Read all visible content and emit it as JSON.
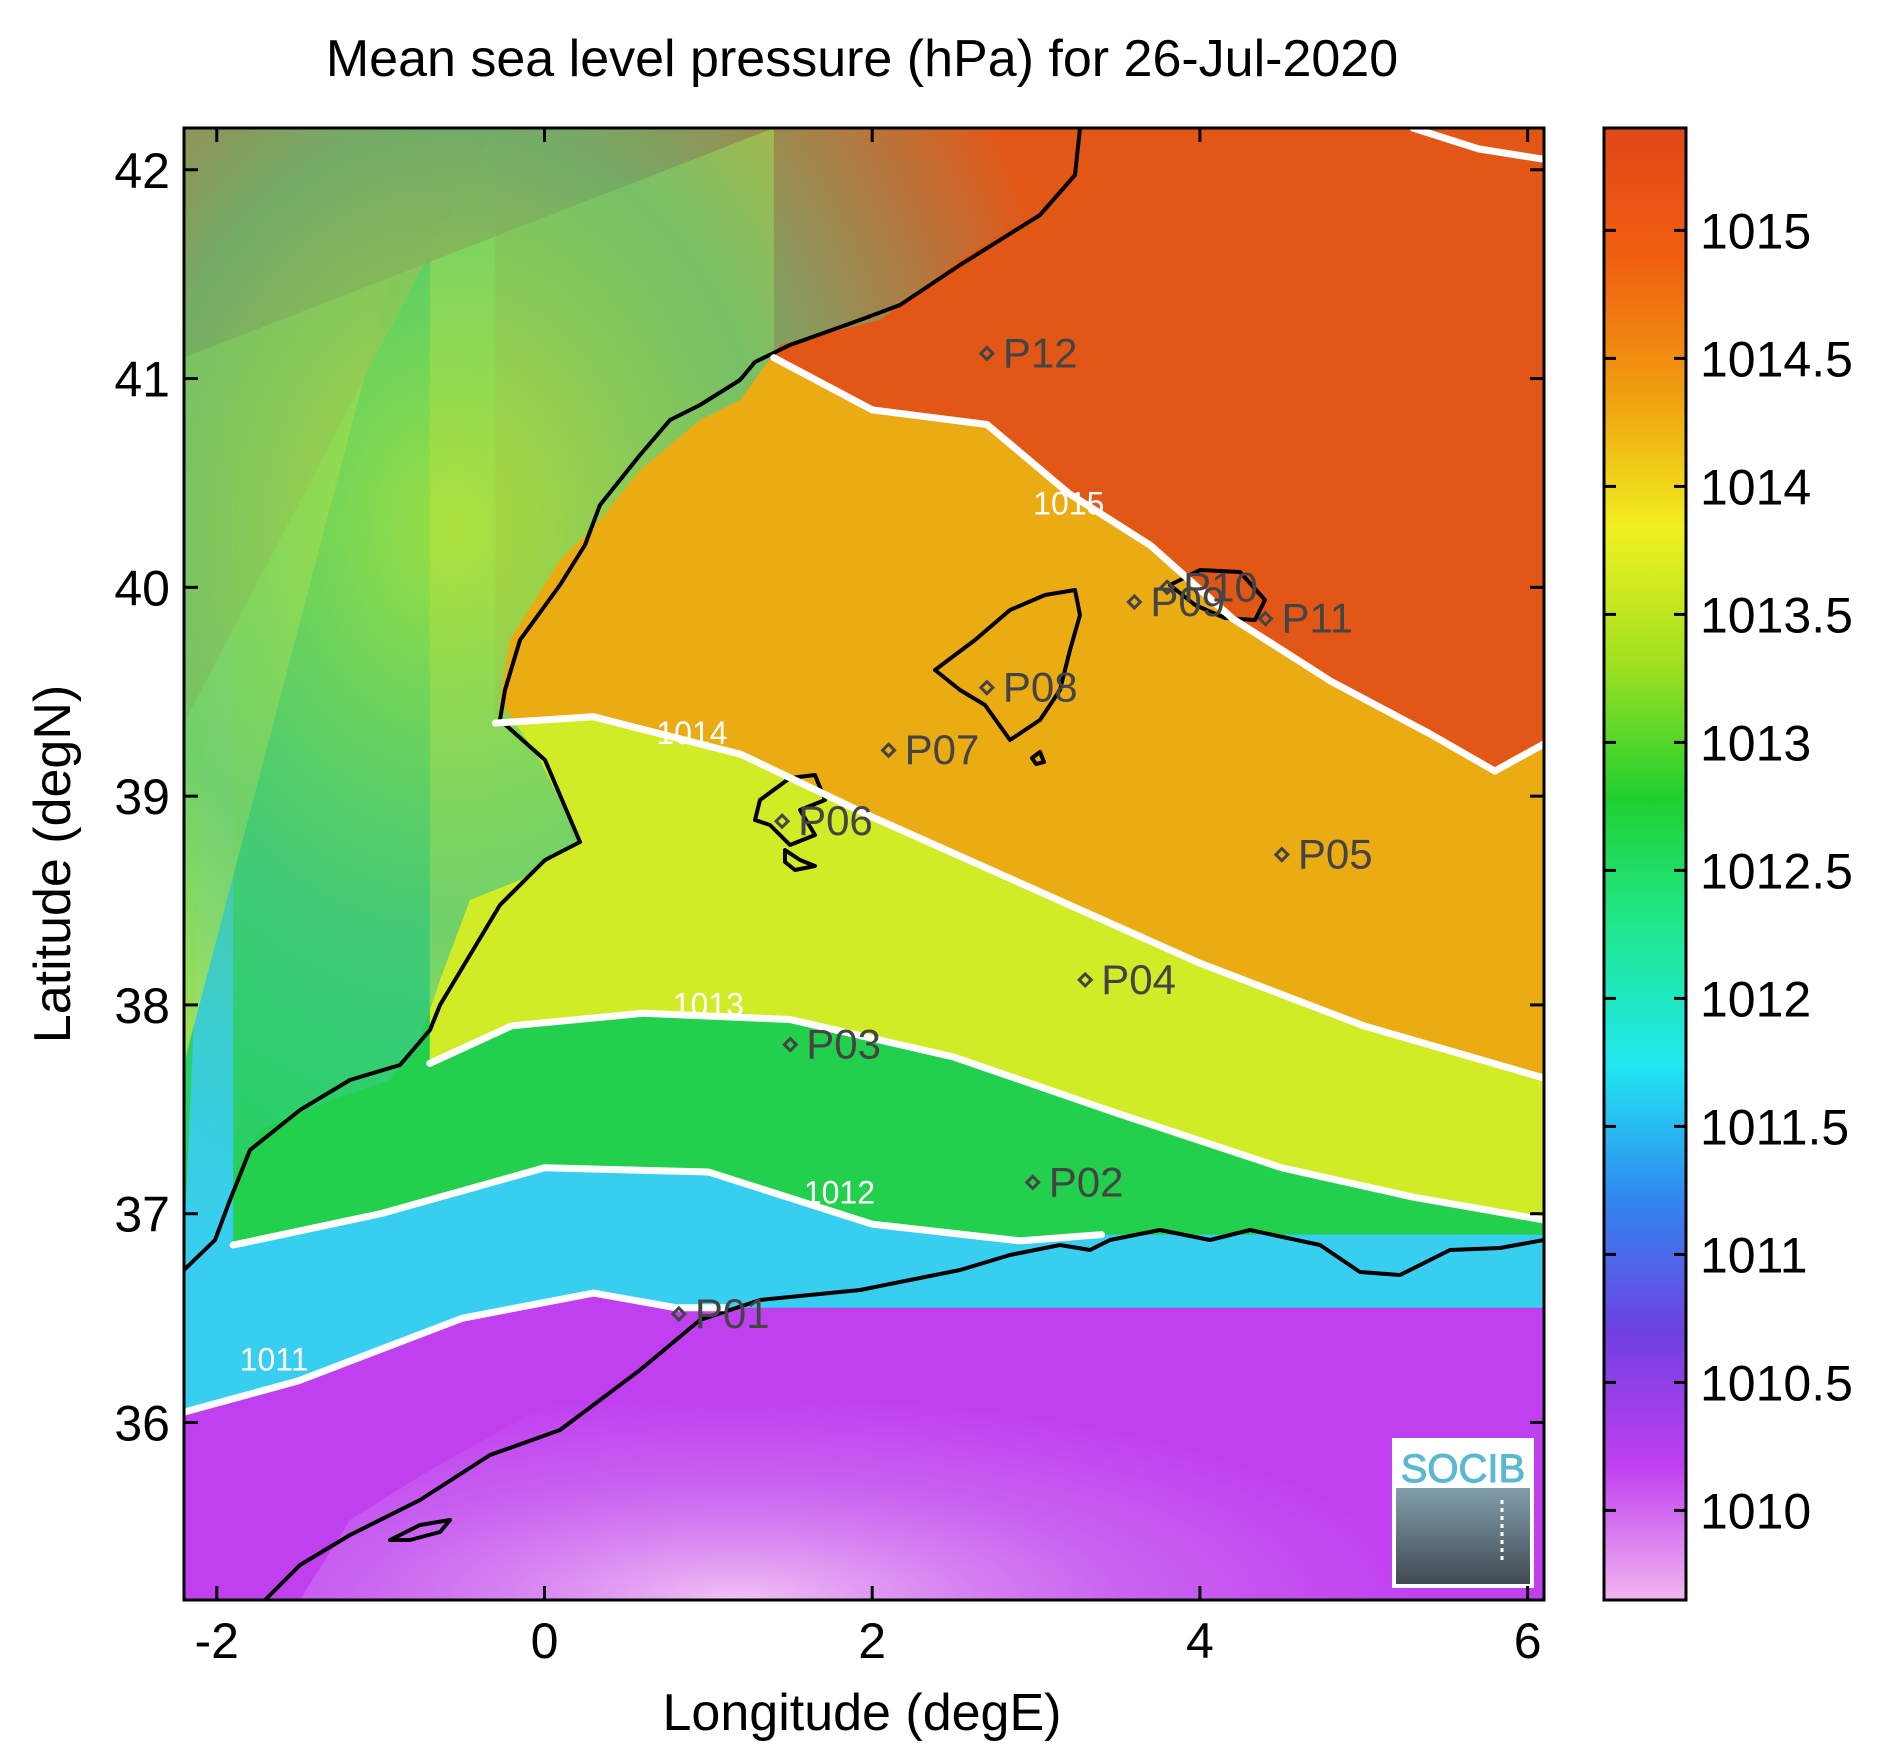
{
  "title": "Mean sea level pressure (hPa) for 26-Jul-2020",
  "x_axis": {
    "label": "Longitude (degE)",
    "range": [
      -2.2,
      6.1
    ],
    "ticks": [
      {
        "value": -2,
        "label": "-2"
      },
      {
        "value": 0,
        "label": "0"
      },
      {
        "value": 2,
        "label": "2"
      },
      {
        "value": 4,
        "label": "4"
      },
      {
        "value": 6,
        "label": "6"
      }
    ]
  },
  "y_axis": {
    "label": "Latitude (degN)",
    "range": [
      35.15,
      42.2
    ],
    "ticks": [
      {
        "value": 36,
        "label": "36"
      },
      {
        "value": 37,
        "label": "37"
      },
      {
        "value": 38,
        "label": "38"
      },
      {
        "value": 39,
        "label": "39"
      },
      {
        "value": 40,
        "label": "40"
      },
      {
        "value": 41,
        "label": "41"
      },
      {
        "value": 42,
        "label": "42"
      }
    ]
  },
  "colorbar": {
    "range": [
      1009.65,
      1015.4
    ],
    "ticks": [
      {
        "value": 1010,
        "label": "1010"
      },
      {
        "value": 1010.5,
        "label": "1010.5"
      },
      {
        "value": 1011,
        "label": "1011"
      },
      {
        "value": 1011.5,
        "label": "1011.5"
      },
      {
        "value": 1012,
        "label": "1012"
      },
      {
        "value": 1012.5,
        "label": "1012.5"
      },
      {
        "value": 1013,
        "label": "1013"
      },
      {
        "value": 1013.5,
        "label": "1013.5"
      },
      {
        "value": 1014,
        "label": "1014"
      },
      {
        "value": 1014.5,
        "label": "1014.5"
      },
      {
        "value": 1015,
        "label": "1015"
      }
    ],
    "colors": [
      "#f0b6f0",
      "#c040f0",
      "#7040e0",
      "#3088f0",
      "#20e8f0",
      "#20e890",
      "#20d030",
      "#a0e020",
      "#f0f020",
      "#f0a010",
      "#f06010",
      "#e04818"
    ]
  },
  "contours": [
    {
      "label": "1011",
      "label_at": [
        -1.65,
        36.25
      ],
      "points": [
        [
          -2.2,
          36.05
        ],
        [
          -1.5,
          36.2
        ],
        [
          -0.5,
          36.5
        ],
        [
          0.3,
          36.62
        ],
        [
          0.8,
          36.55
        ],
        [
          1.1,
          36.55
        ]
      ]
    },
    {
      "label": "1012",
      "label_at": [
        1.8,
        37.05
      ],
      "points": [
        [
          -1.9,
          36.85
        ],
        [
          -1.0,
          37.0
        ],
        [
          0.0,
          37.22
        ],
        [
          1.0,
          37.2
        ],
        [
          2.0,
          36.95
        ],
        [
          2.9,
          36.87
        ],
        [
          3.4,
          36.9
        ]
      ]
    },
    {
      "label": "1013",
      "label_at": [
        1.0,
        37.95
      ],
      "points": [
        [
          -0.7,
          37.72
        ],
        [
          -0.2,
          37.9
        ],
        [
          0.6,
          37.96
        ],
        [
          1.5,
          37.93
        ],
        [
          2.5,
          37.75
        ],
        [
          3.5,
          37.48
        ],
        [
          4.5,
          37.22
        ],
        [
          5.3,
          37.08
        ],
        [
          6.1,
          36.97
        ]
      ]
    },
    {
      "label": "1014",
      "label_at": [
        0.9,
        39.25
      ],
      "points": [
        [
          -0.3,
          39.35
        ],
        [
          0.3,
          39.38
        ],
        [
          1.2,
          39.2
        ],
        [
          2.0,
          38.9
        ],
        [
          3.0,
          38.55
        ],
        [
          4.0,
          38.2
        ],
        [
          5.0,
          37.9
        ],
        [
          6.1,
          37.65
        ]
      ]
    },
    {
      "label": "1015",
      "label_at": [
        3.2,
        40.35
      ],
      "points": [
        [
          1.4,
          41.1
        ],
        [
          2.0,
          40.85
        ],
        [
          2.7,
          40.78
        ],
        [
          3.2,
          40.45
        ],
        [
          3.7,
          40.2
        ],
        [
          4.2,
          39.85
        ],
        [
          4.8,
          39.55
        ],
        [
          5.4,
          39.3
        ],
        [
          5.8,
          39.12
        ],
        [
          6.1,
          39.25
        ]
      ]
    },
    {
      "label": "",
      "label_at": null,
      "points": [
        [
          5.3,
          42.2
        ],
        [
          5.7,
          42.1
        ],
        [
          6.1,
          42.05
        ]
      ]
    }
  ],
  "stations": [
    {
      "name": "P01",
      "lon": 0.82,
      "lat": 36.52
    },
    {
      "name": "P02",
      "lon": 2.98,
      "lat": 37.15
    },
    {
      "name": "P03",
      "lon": 1.5,
      "lat": 37.81
    },
    {
      "name": "P04",
      "lon": 3.3,
      "lat": 38.12
    },
    {
      "name": "P05",
      "lon": 4.5,
      "lat": 38.72
    },
    {
      "name": "P06",
      "lon": 1.45,
      "lat": 38.88
    },
    {
      "name": "P07",
      "lon": 2.1,
      "lat": 39.22
    },
    {
      "name": "P08",
      "lon": 2.7,
      "lat": 39.52
    },
    {
      "name": "P09",
      "lon": 3.6,
      "lat": 39.93
    },
    {
      "name": "P10",
      "lon": 3.8,
      "lat": 40.0
    },
    {
      "name": "P11",
      "lon": 4.4,
      "lat": 39.85
    },
    {
      "name": "P12",
      "lon": 2.7,
      "lat": 41.12
    }
  ],
  "logo": {
    "text": "SOCIB"
  }
}
